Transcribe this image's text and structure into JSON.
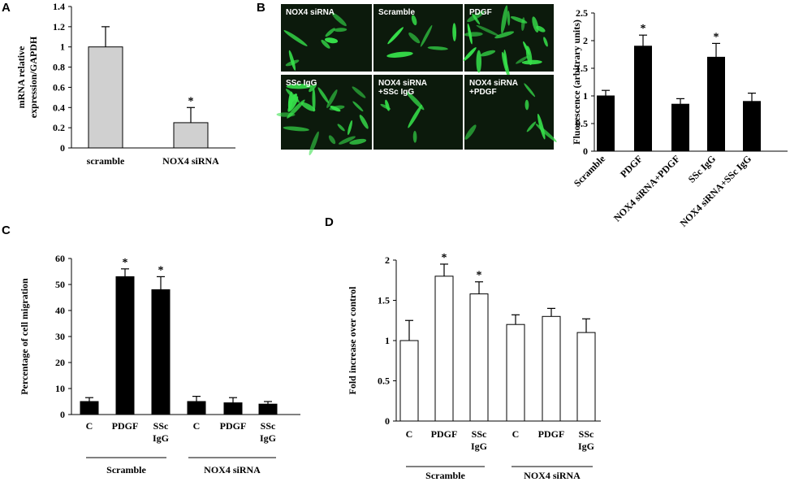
{
  "panel_labels": [
    "A",
    "B",
    "C",
    "D"
  ],
  "micrographs": [
    {
      "lines": [
        "NOX4 siRNA"
      ]
    },
    {
      "lines": [
        "Scramble"
      ]
    },
    {
      "lines": [
        "PDGF"
      ]
    },
    {
      "lines": [
        "SSc IgG"
      ]
    },
    {
      "lines": [
        "NOX4 siRNA",
        "+SSc IgG"
      ]
    },
    {
      "lines": [
        "NOX4 siRNA",
        "+PDGF"
      ]
    }
  ],
  "colors": {
    "bar_gray": "#d0d0d0",
    "bar_black": "#000000",
    "bar_white": "#ffffff",
    "micro_bg": "#0c1a0c",
    "cell_green": "#36e04a"
  },
  "chart_data": [
    {
      "id": "A",
      "type": "bar",
      "categories": [
        "scramble",
        "NOX4 siRNA"
      ],
      "values": [
        1.0,
        0.25
      ],
      "errors": [
        0.2,
        0.15
      ],
      "significant": [
        false,
        true
      ],
      "ylabel_lines": [
        "mRNA  relative",
        "expression/GAPDH"
      ],
      "ylim": [
        0,
        1.4
      ],
      "yticks": [
        0,
        0.2,
        0.4,
        0.6,
        0.8,
        1,
        1.2,
        1.4
      ],
      "ytick_labels": [
        "0",
        "0.2",
        "0.4",
        "0.6",
        "0.8",
        "1",
        "1.2",
        "1.4"
      ],
      "star_label": "*"
    },
    {
      "id": "B",
      "type": "bar",
      "categories": [
        "Scramble",
        "PDGF",
        "NOX4 siRNA+PDGF",
        "SSc IgG",
        "NOX4 siRNA+SSc IgG"
      ],
      "values": [
        1.0,
        1.9,
        0.85,
        1.7,
        0.9
      ],
      "errors": [
        0.1,
        0.2,
        0.1,
        0.25,
        0.15
      ],
      "significant": [
        false,
        true,
        false,
        true,
        false
      ],
      "ylabel": "Fluorescence (arbitrary units)",
      "ylim": [
        0,
        2.5
      ],
      "yticks": [
        0,
        0.5,
        1,
        1.5,
        2,
        2.5
      ],
      "ytick_labels": [
        "0",
        "0.5",
        "1",
        "1.5",
        "2",
        "2.5"
      ],
      "star_label": "*"
    },
    {
      "id": "C",
      "type": "bar",
      "categories": [
        "C",
        "PDGF",
        "SSc IgG",
        "C",
        "PDGF",
        "SSc IgG"
      ],
      "values": [
        5,
        53,
        48,
        5,
        4.5,
        4
      ],
      "errors": [
        1.5,
        3,
        5,
        2,
        2,
        1
      ],
      "significant": [
        false,
        true,
        true,
        false,
        false,
        false
      ],
      "ylabel": "Percentage of cell migration",
      "ylim": [
        0,
        60
      ],
      "yticks": [
        0,
        10,
        20,
        30,
        40,
        50,
        60
      ],
      "ytick_labels": [
        "0",
        "10",
        "20",
        "30",
        "40",
        "50",
        "60"
      ],
      "groups": [
        "Scramble",
        "NOX4 siRNA"
      ],
      "star_label": "*"
    },
    {
      "id": "D",
      "type": "bar",
      "categories": [
        "C",
        "PDGF",
        "SSc IgG",
        "C",
        "PDGF",
        "SSc IgG"
      ],
      "values": [
        1.0,
        1.8,
        1.58,
        1.2,
        1.3,
        1.1
      ],
      "errors": [
        0.25,
        0.15,
        0.15,
        0.12,
        0.1,
        0.17
      ],
      "significant": [
        false,
        true,
        true,
        false,
        false,
        false
      ],
      "ylabel": "Fold increase over control",
      "ylim": [
        0,
        2
      ],
      "yticks": [
        0,
        0.5,
        1,
        1.5,
        2
      ],
      "ytick_labels": [
        "0",
        "0.5",
        "1",
        "1.5",
        "2"
      ],
      "groups": [
        "Scramble",
        "NOX4 siRNA"
      ],
      "star_label": "*"
    }
  ]
}
